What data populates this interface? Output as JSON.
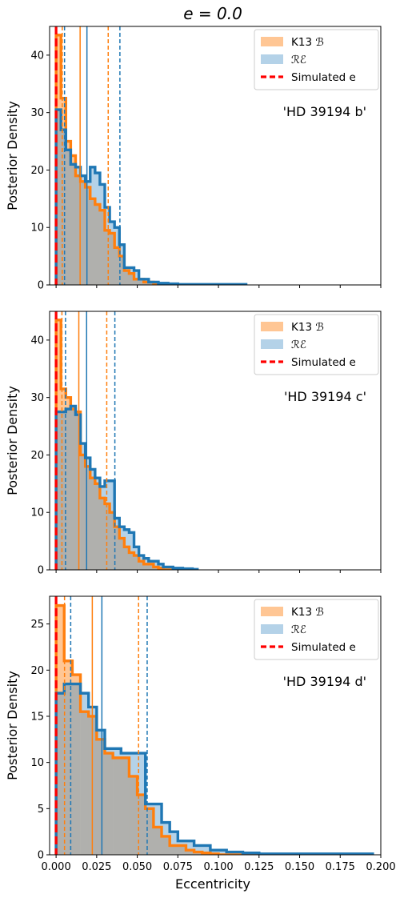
{
  "chart_data": {
    "type": "histogram",
    "title": "e = 0.0",
    "xlabel": "Eccentricity",
    "xlim": [
      -0.004,
      0.2
    ],
    "xticks": [
      "0.000",
      "0.025",
      "0.050",
      "0.075",
      "0.100",
      "0.125",
      "0.150",
      "0.175",
      "0.200"
    ],
    "xtick_values": [
      0,
      0.025,
      0.05,
      0.075,
      0.1,
      0.125,
      0.15,
      0.175,
      0.2
    ],
    "legend": {
      "placement": "top-right",
      "entries": [
        {
          "label": "K13 ℬ",
          "kind": "patch",
          "color": "#ffc694"
        },
        {
          "label": "ℛℰ",
          "kind": "patch",
          "color": "#b4d2e8"
        },
        {
          "label": "Simulated e",
          "kind": "dashed-line",
          "color": "#ff0000"
        }
      ]
    },
    "colors": {
      "k13_edge": "#ff7f0e",
      "k13_fill": "#ffc694",
      "re_edge": "#1f77b4",
      "re_fill": "#b4d2e8",
      "overlap_fill": "#b0b0ad",
      "simulated": "#ff0000"
    },
    "panels": [
      {
        "annotation": "'HD 39194 b'",
        "ylabel": "Posterior Density",
        "ylim": [
          0,
          45
        ],
        "yticks": [
          0,
          10,
          20,
          30,
          40
        ],
        "simulated_e": 0.0,
        "bin_edges": [
          0,
          0.003,
          0.006,
          0.009,
          0.012,
          0.015,
          0.018,
          0.021,
          0.024,
          0.027,
          0.03,
          0.033,
          0.036,
          0.039,
          0.042,
          0.045,
          0.048,
          0.051,
          0.054,
          0.057,
          0.06,
          0.063,
          0.066,
          0.069,
          0.072,
          0.075,
          0.078,
          0.081,
          0.084,
          0.087,
          0.09,
          0.093,
          0.096,
          0.099,
          0.102,
          0.105,
          0.108,
          0.111,
          0.114,
          0.117
        ],
        "series": [
          {
            "name": "K13 ℬ",
            "values": [
              43.5,
              32.5,
              25.0,
              22.5,
              19.0,
              18.0,
              17.0,
              15.0,
              14.0,
              13.0,
              9.5,
              9.0,
              6.5,
              5.0,
              2.5,
              2.0,
              1.0,
              1.0,
              0.5,
              0.5,
              0.2,
              0.2,
              0.1,
              0.1,
              0,
              0,
              0,
              0,
              0,
              0,
              0,
              0,
              0,
              0,
              0,
              0,
              0,
              0,
              0
            ],
            "median": 0.0148,
            "lower": 0.0038,
            "upper": 0.0321
          },
          {
            "name": "ℛℰ",
            "values": [
              30.5,
              27.0,
              23.5,
              21.0,
              20.5,
              19.0,
              18.0,
              20.5,
              19.5,
              17.5,
              13.5,
              11.0,
              10.0,
              7.0,
              3.0,
              3.0,
              2.5,
              1.0,
              1.0,
              0.5,
              0.5,
              0.3,
              0.3,
              0.2,
              0.2,
              0.1,
              0.1,
              0.1,
              0.1,
              0.1,
              0.1,
              0.1,
              0.1,
              0.1,
              0.1,
              0.1,
              0.1,
              0.1,
              0.1
            ],
            "median": 0.019,
            "lower": 0.0052,
            "upper": 0.0393
          }
        ]
      },
      {
        "annotation": "'HD 39194 c'",
        "ylabel": "Posterior Density",
        "ylim": [
          0,
          45
        ],
        "yticks": [
          0,
          10,
          20,
          30,
          40
        ],
        "simulated_e": 0.0,
        "bin_edges": [
          0,
          0.003,
          0.006,
          0.009,
          0.012,
          0.015,
          0.018,
          0.021,
          0.024,
          0.027,
          0.03,
          0.033,
          0.036,
          0.039,
          0.042,
          0.045,
          0.048,
          0.051,
          0.054,
          0.057,
          0.06,
          0.063,
          0.066,
          0.069,
          0.072,
          0.075,
          0.078,
          0.081,
          0.084,
          0.087
        ],
        "series": [
          {
            "name": "K13 ℬ",
            "values": [
              43.5,
              31.5,
              30.0,
              28.0,
              27.5,
              20.0,
              18.0,
              16.0,
              15.0,
              12.5,
              11.5,
              10.0,
              7.5,
              5.5,
              4.0,
              3.0,
              2.5,
              1.5,
              1.0,
              1.0,
              0.5,
              0.3,
              0,
              0,
              0,
              0,
              0,
              0,
              0
            ],
            "median": 0.014,
            "lower": 0.0036,
            "upper": 0.0312
          },
          {
            "name": "ℛℰ",
            "values": [
              27.5,
              27.5,
              28.0,
              28.5,
              27.0,
              22.0,
              19.5,
              17.5,
              16.0,
              14.5,
              15.5,
              15.5,
              9.0,
              7.5,
              7.0,
              6.5,
              4.0,
              2.5,
              2.0,
              1.5,
              1.5,
              1.0,
              0.5,
              0.5,
              0.3,
              0.3,
              0.2,
              0.2,
              0.1
            ],
            "median": 0.0188,
            "lower": 0.0058,
            "upper": 0.0362
          }
        ]
      },
      {
        "annotation": "'HD 39194 d'",
        "ylabel": "Posterior Density",
        "ylim": [
          0,
          28
        ],
        "yticks": [
          0,
          5,
          10,
          15,
          20,
          25
        ],
        "simulated_e": 0.0,
        "bin_edges": [
          0,
          0.005,
          0.01,
          0.015,
          0.02,
          0.025,
          0.03,
          0.035,
          0.04,
          0.045,
          0.05,
          0.055,
          0.06,
          0.065,
          0.07,
          0.075,
          0.08,
          0.085,
          0.09,
          0.095,
          0.1,
          0.105,
          0.11,
          0.115,
          0.12,
          0.125,
          0.13,
          0.135,
          0.14,
          0.145,
          0.15,
          0.155,
          0.16,
          0.165,
          0.17,
          0.175,
          0.18,
          0.185,
          0.19,
          0.195
        ],
        "series": [
          {
            "name": "K13 ℬ",
            "values": [
              27.0,
              21.0,
              19.5,
              15.5,
              15.0,
              12.5,
              11.0,
              10.5,
              10.5,
              8.5,
              6.5,
              5.0,
              3.0,
              2.0,
              1.0,
              1.0,
              0.5,
              0.3,
              0.2,
              0.1,
              0,
              0,
              0,
              0,
              0,
              0,
              0,
              0,
              0,
              0,
              0,
              0,
              0,
              0,
              0,
              0,
              0,
              0,
              0
            ],
            "median": 0.0223,
            "lower": 0.0052,
            "upper": 0.0508
          },
          {
            "name": "ℛℰ",
            "values": [
              17.5,
              18.5,
              18.5,
              17.5,
              16.0,
              13.5,
              11.5,
              11.5,
              11.0,
              11.0,
              11.0,
              5.5,
              5.5,
              3.5,
              2.5,
              1.5,
              1.5,
              1.0,
              1.0,
              0.5,
              0.5,
              0.3,
              0.3,
              0.2,
              0.2,
              0.1,
              0.1,
              0.1,
              0.1,
              0.1,
              0.1,
              0.1,
              0.1,
              0.1,
              0.1,
              0.1,
              0.1,
              0.1,
              0.1
            ],
            "median": 0.0282,
            "lower": 0.009,
            "upper": 0.0561
          }
        ]
      }
    ]
  }
}
